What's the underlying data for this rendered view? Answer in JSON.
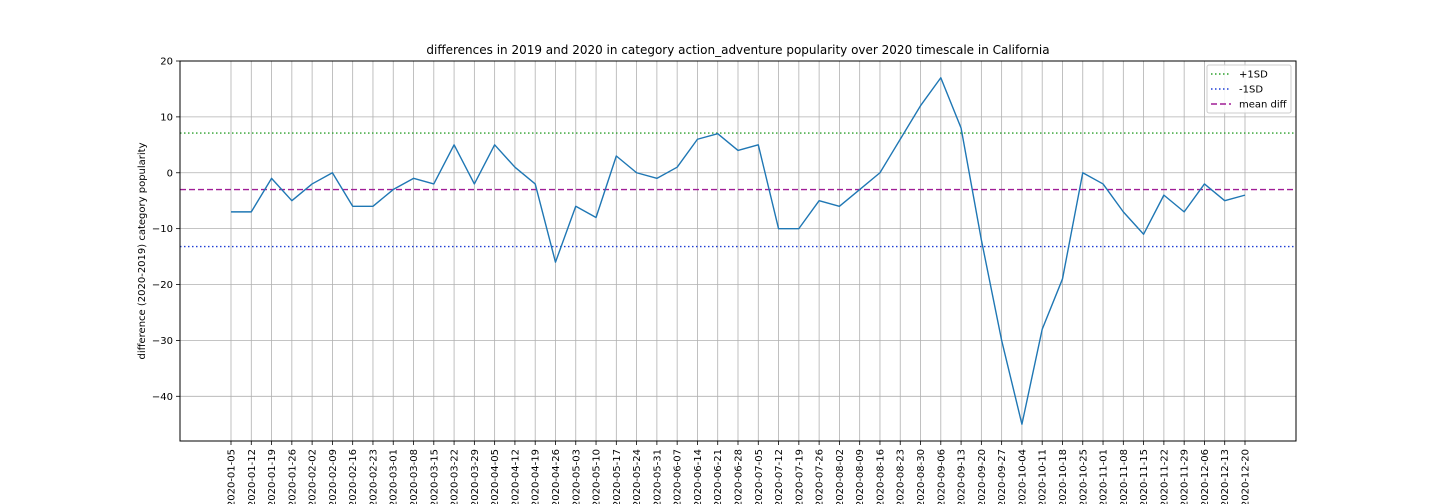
{
  "chart_data": {
    "type": "line",
    "title": "differences in 2019 and 2020 in category action_adventure popularity over 2020 timescale in California",
    "xlabel": "",
    "ylabel": "difference (2020-2019) category popularity",
    "ylim": [
      -48,
      20
    ],
    "yticks": [
      20,
      10,
      0,
      -10,
      -20,
      -30,
      -40
    ],
    "ytick_labels": [
      "20",
      "10",
      "0",
      "−10",
      "−20",
      "−30",
      "−40"
    ],
    "grid": true,
    "legend_position": "top-right",
    "x": [
      "2020-01-05",
      "2020-01-12",
      "2020-01-19",
      "2020-01-26",
      "2020-02-02",
      "2020-02-09",
      "2020-02-16",
      "2020-02-23",
      "2020-03-01",
      "2020-03-08",
      "2020-03-15",
      "2020-03-22",
      "2020-03-29",
      "2020-04-05",
      "2020-04-12",
      "2020-04-19",
      "2020-04-26",
      "2020-05-03",
      "2020-05-10",
      "2020-05-17",
      "2020-05-24",
      "2020-05-31",
      "2020-06-07",
      "2020-06-14",
      "2020-06-21",
      "2020-06-28",
      "2020-07-05",
      "2020-07-12",
      "2020-07-19",
      "2020-07-26",
      "2020-08-02",
      "2020-08-09",
      "2020-08-16",
      "2020-08-23",
      "2020-08-30",
      "2020-09-06",
      "2020-09-13",
      "2020-09-20",
      "2020-09-27",
      "2020-10-04",
      "2020-10-11",
      "2020-10-18",
      "2020-10-25",
      "2020-11-01",
      "2020-11-08",
      "2020-11-15",
      "2020-11-22",
      "2020-11-29",
      "2020-12-06",
      "2020-12-13",
      "2020-12-20"
    ],
    "series": [
      {
        "color": "#1f77b4",
        "values": [
          -7,
          -7,
          -1,
          -5,
          -2,
          0,
          -6,
          -6,
          -3,
          -1,
          -2,
          5,
          -2,
          5,
          1,
          -2,
          -16,
          -6,
          -8,
          3,
          0,
          -1,
          1,
          6,
          7,
          4,
          5,
          -10,
          -10,
          -5,
          -6,
          -3,
          0,
          6,
          12,
          17,
          8,
          -12,
          -30,
          -45,
          -28,
          -19,
          0,
          -2,
          -7,
          -11,
          -4,
          -7,
          -2,
          -5,
          -4
        ]
      }
    ],
    "reference_lines": [
      {
        "name": "+1SD",
        "value": 7.1,
        "color": "#2ca02c",
        "style": "dotted"
      },
      {
        "name": "-1SD",
        "value": -13.2,
        "color": "#1f3fd6",
        "style": "dotted"
      },
      {
        "name": "mean diff",
        "value": -3.0,
        "color": "#a01e96",
        "style": "dashed"
      }
    ]
  }
}
